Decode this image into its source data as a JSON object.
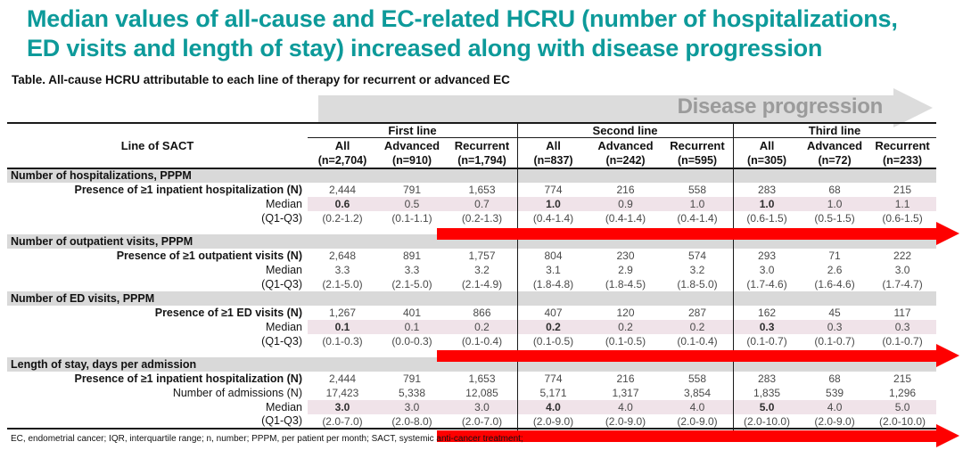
{
  "title": {
    "line1": "Median values of all-cause and EC-related HCRU (number of hospitalizations,",
    "line2": "ED visits and length of stay) increased along with disease progression"
  },
  "table_caption": "Table. All-cause HCRU attributable to each line of therapy for recurrent or advanced EC",
  "disease_progression_label": "Disease progression",
  "colors": {
    "accent_teal": "#0d9a9a",
    "section_header_gray": "#d9d9d9",
    "median_highlight_pink": "#f0e3e9",
    "trend_arrow_red": "#fe0000",
    "progression_arrow_gray": "#dcdcdc"
  },
  "table": {
    "row_label_header": "Line of SACT",
    "groups": [
      {
        "label": "First line",
        "columns": [
          {
            "label": "All",
            "n": "(n=2,704)"
          },
          {
            "label": "Advanced",
            "n": "(n=910)"
          },
          {
            "label": "Recurrent",
            "n": "(n=1,794)"
          }
        ]
      },
      {
        "label": "Second line",
        "columns": [
          {
            "label": "All",
            "n": "(n=837)"
          },
          {
            "label": "Advanced",
            "n": "(n=242)"
          },
          {
            "label": "Recurrent",
            "n": "(n=595)"
          }
        ]
      },
      {
        "label": "Third line",
        "columns": [
          {
            "label": "All",
            "n": "(n=305)"
          },
          {
            "label": "Advanced",
            "n": "(n=72)"
          },
          {
            "label": "Recurrent",
            "n": "(n=233)"
          }
        ]
      }
    ],
    "sections": [
      {
        "header": "Number of hospitalizations, PPPM",
        "arrow_after": true,
        "rows": [
          {
            "label": "Presence of ≥1 inpatient hospitalization (N)",
            "bold_label": true,
            "values": [
              "2,444",
              "791",
              "1,653",
              "774",
              "216",
              "558",
              "283",
              "68",
              "215"
            ]
          },
          {
            "label": "Median",
            "highlight": true,
            "bold_cols": [
              0,
              3,
              6
            ],
            "values": [
              "0.6",
              "0.5",
              "0.7",
              "1.0",
              "0.9",
              "1.0",
              "1.0",
              "1.0",
              "1.1"
            ]
          },
          {
            "label": "(Q1-Q3)",
            "values": [
              "(0.2-1.2)",
              "(0.1-1.1)",
              "(0.2-1.3)",
              "(0.4-1.4)",
              "(0.4-1.4)",
              "(0.4-1.4)",
              "(0.6-1.5)",
              "(0.5-1.5)",
              "(0.6-1.5)"
            ]
          }
        ]
      },
      {
        "header": "Number of outpatient visits, PPPM",
        "arrow_after": false,
        "rows": [
          {
            "label": "Presence of ≥1 outpatient visits (N)",
            "bold_label": true,
            "values": [
              "2,648",
              "891",
              "1,757",
              "804",
              "230",
              "574",
              "293",
              "71",
              "222"
            ]
          },
          {
            "label": "Median",
            "values": [
              "3.3",
              "3.3",
              "3.2",
              "3.1",
              "2.9",
              "3.2",
              "3.0",
              "2.6",
              "3.0"
            ]
          },
          {
            "label": "(Q1-Q3)",
            "values": [
              "(2.1-5.0)",
              "(2.1-5.0)",
              "(2.1-4.9)",
              "(1.8-4.8)",
              "(1.8-4.5)",
              "(1.8-5.0)",
              "(1.7-4.6)",
              "(1.6-4.6)",
              "(1.7-4.7)"
            ]
          }
        ]
      },
      {
        "header": "Number of ED visits, PPPM",
        "arrow_after": true,
        "rows": [
          {
            "label": "Presence of ≥1 ED visits (N)",
            "bold_label": true,
            "values": [
              "1,267",
              "401",
              "866",
              "407",
              "120",
              "287",
              "162",
              "45",
              "117"
            ]
          },
          {
            "label": "Median",
            "highlight": true,
            "bold_cols": [
              0,
              3,
              6
            ],
            "values": [
              "0.1",
              "0.1",
              "0.2",
              "0.2",
              "0.2",
              "0.2",
              "0.3",
              "0.3",
              "0.3"
            ]
          },
          {
            "label": "(Q1-Q3)",
            "values": [
              "(0.1-0.3)",
              "(0.0-0.3)",
              "(0.1-0.4)",
              "(0.1-0.5)",
              "(0.1-0.5)",
              "(0.1-0.4)",
              "(0.1-0.7)",
              "(0.1-0.7)",
              "(0.1-0.7)"
            ]
          }
        ]
      },
      {
        "header": "Length of stay, days per admission",
        "arrow_after": true,
        "rows": [
          {
            "label": "Presence of ≥1 inpatient hospitalization (N)",
            "bold_label": true,
            "values": [
              "2,444",
              "791",
              "1,653",
              "774",
              "216",
              "558",
              "283",
              "68",
              "215"
            ]
          },
          {
            "label": "Number of admissions (N)",
            "values": [
              "17,423",
              "5,338",
              "12,085",
              "5,171",
              "1,317",
              "3,854",
              "1,835",
              "539",
              "1,296"
            ]
          },
          {
            "label": "Median",
            "highlight": true,
            "bold_cols": [
              0,
              3,
              6
            ],
            "values": [
              "3.0",
              "3.0",
              "3.0",
              "4.0",
              "4.0",
              "4.0",
              "5.0",
              "4.0",
              "5.0"
            ]
          },
          {
            "label": "(Q1-Q3)",
            "values": [
              "(2.0-7.0)",
              "(2.0-8.0)",
              "(2.0-7.0)",
              "(2.0-9.0)",
              "(2.0-9.0)",
              "(2.0-9.0)",
              "(2.0-10.0)",
              "(2.0-9.0)",
              "(2.0-10.0)"
            ]
          }
        ]
      }
    ]
  },
  "footnote": "EC, endometrial cancer; IQR, interquartile range; n, number; PPPM, per patient per month; SACT, systemic anti-cancer treatment;"
}
